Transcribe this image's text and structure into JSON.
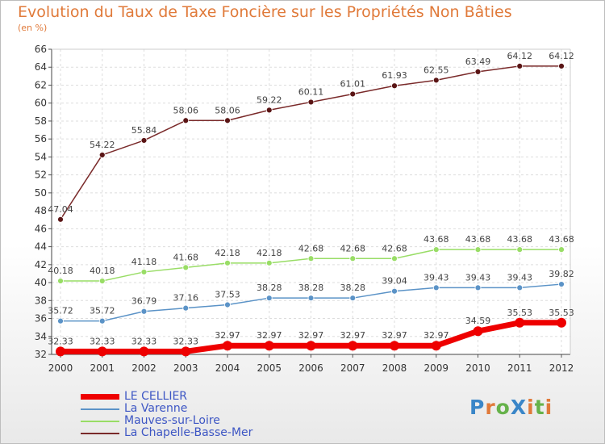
{
  "chart_data": {
    "type": "line",
    "title": "Evolution du Taux de Taxe Foncière sur les Propriétés Non Bâties",
    "ylabel": "(en %)",
    "x": [
      "2000",
      "2001",
      "2002",
      "2003",
      "2004",
      "2005",
      "2006",
      "2007",
      "2008",
      "2009",
      "2010",
      "2011",
      "2012"
    ],
    "ylim": [
      32,
      66
    ],
    "yticks": [
      32,
      34,
      36,
      38,
      40,
      42,
      44,
      46,
      48,
      50,
      52,
      54,
      56,
      58,
      60,
      62,
      64,
      66
    ],
    "series": [
      {
        "name": "LE CELLIER",
        "color": "#ee0000",
        "values": [
          32.33,
          32.33,
          32.33,
          32.33,
          32.97,
          32.97,
          32.97,
          32.97,
          32.97,
          32.97,
          34.59,
          35.53,
          35.53
        ],
        "labels": [
          "32.33",
          "32.33",
          "32.33",
          "32.33",
          "32.97",
          "32.97",
          "32.97",
          "32.97",
          "32.97",
          "32.97",
          "34.59",
          "35.53",
          "35.53"
        ]
      },
      {
        "name": "La Varenne",
        "color": "#5b93c7",
        "values": [
          35.72,
          35.72,
          36.79,
          37.16,
          37.53,
          38.28,
          38.28,
          38.28,
          39.04,
          39.43,
          39.43,
          39.43,
          39.82
        ],
        "labels": [
          "35.72",
          "35.72",
          "36.79",
          "37.16",
          "37.53",
          "38.28",
          "38.28",
          "38.28",
          "39.04",
          "39.43",
          "39.43",
          "39.43",
          "39.82"
        ]
      },
      {
        "name": "Mauves-sur-Loire",
        "color": "#99dd66",
        "values": [
          40.18,
          40.18,
          41.18,
          41.68,
          42.18,
          42.18,
          42.68,
          42.68,
          42.68,
          43.68,
          43.68,
          43.68,
          43.68
        ],
        "labels": [
          "40.18",
          "40.18",
          "41.18",
          "41.68",
          "42.18",
          "42.18",
          "42.68",
          "42.68",
          "42.68",
          "43.68",
          "43.68",
          "43.68",
          "43.68"
        ]
      },
      {
        "name": "La Chapelle-Basse-Mer",
        "color": "#7a2a2a",
        "values": [
          47.04,
          54.22,
          55.84,
          58.06,
          58.06,
          59.22,
          60.11,
          61.01,
          61.93,
          62.55,
          63.49,
          64.12,
          64.12
        ],
        "labels": [
          "47.04",
          "54.22",
          "55.84",
          "58.06",
          "58.06",
          "59.22",
          "60.11",
          "61.01",
          "61.93",
          "62.55",
          "63.49",
          "64.12",
          "64.12"
        ]
      }
    ],
    "grid": true,
    "legend_position": "bottom-left"
  },
  "logo": {
    "text": "ProXiti",
    "letters": [
      "P",
      "r",
      "o",
      "X",
      "i",
      "t",
      "i"
    ],
    "colors": [
      "#3a86c8",
      "#e07a3a",
      "#66b24a",
      "#3a86c8",
      "#e07a3a",
      "#66b24a",
      "#e07a3a"
    ]
  }
}
